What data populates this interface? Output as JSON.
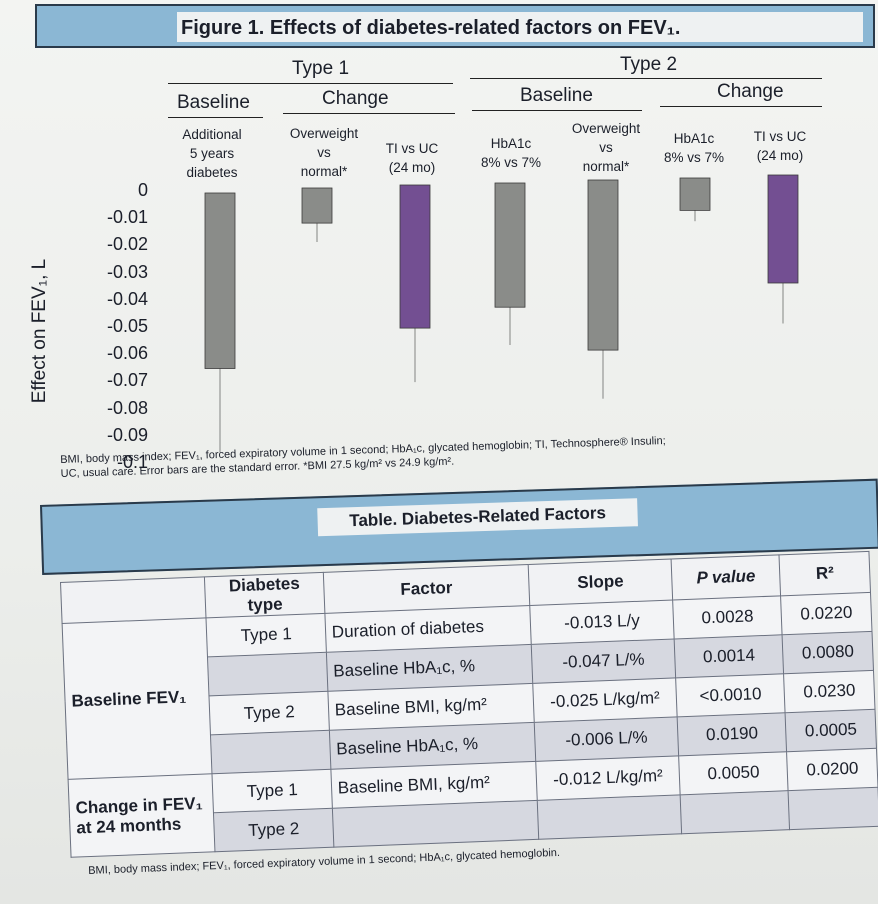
{
  "figure_title": "Figure 1. Effects of diabetes-related factors on FEV₁.",
  "headers": {
    "type1": "Type 1",
    "type2": "Type 2",
    "baseline": "Baseline",
    "change": "Change"
  },
  "chart_data": {
    "type": "bar",
    "ylabel": "Effect on FEV₁, L",
    "ylim": [
      -0.1,
      0
    ],
    "yticks": [
      "0",
      "-0.01",
      "-0.02",
      "-0.03",
      "-0.04",
      "-0.05",
      "-0.06",
      "-0.07",
      "-0.08",
      "-0.09",
      "-0.1"
    ],
    "categories": [
      "Additional\n5 years\ndiabetes",
      "Overweight\nvs\nnormal*",
      "TI vs UC\n(24 mo)",
      "HbA1c\n8% vs 7%",
      "Overweight\nvs\nnormal*",
      "HbA1c\n8% vs 7%",
      "TI vs UC\n(24 mo)"
    ],
    "values": [
      -0.065,
      -0.013,
      -0.053,
      -0.046,
      -0.063,
      -0.012,
      -0.04
    ],
    "errors": [
      0.031,
      0.007,
      0.02,
      0.014,
      0.018,
      0.004,
      0.015
    ],
    "colors": [
      "#8a8c89",
      "#8a8c89",
      "#734f92",
      "#8a8c89",
      "#8a8c89",
      "#8a8c89",
      "#734f92"
    ],
    "groups": [
      "Type 1 Baseline",
      "Type 1 Change",
      "Type 1 Change",
      "Type 2 Baseline",
      "Type 2 Baseline",
      "Type 2 Change",
      "Type 2 Change"
    ]
  },
  "footnote_fig": "BMI, body mass index; FEV₁, forced expiratory volume in 1 second; HbA₁c, glycated hemoglobin; TI, Technosphere® Insulin;\nUC, usual care. Error bars are the standard error. *BMI 27.5 kg/m² vs 24.9 kg/m².",
  "table": {
    "title": "Table. Diabetes-Related Factors",
    "columns": [
      "",
      "Diabetes type",
      "Factor",
      "Slope",
      "P value",
      "R²"
    ],
    "sections": [
      {
        "label": "Baseline FEV₁",
        "rows": [
          {
            "type": "Type 1",
            "factor": "Duration of diabetes",
            "slope": "-0.013 L/y",
            "p": "0.0028",
            "r2": "0.0220"
          },
          {
            "type": "",
            "factor": "Baseline HbA₁c, %",
            "slope": "-0.047 L/%",
            "p": "0.0014",
            "r2": "0.0080"
          },
          {
            "type": "Type 2",
            "factor": "Baseline BMI, kg/m²",
            "slope": "-0.025 L/kg/m²",
            "p": "<0.0010",
            "r2": "0.0230"
          },
          {
            "type": "",
            "factor": "Baseline HbA₁c, %",
            "slope": "-0.006 L/%",
            "p": "0.0190",
            "r2": "0.0005"
          }
        ]
      },
      {
        "label": "Change in FEV₁ at 24 months",
        "rows": [
          {
            "type": "Type 1",
            "factor": "Baseline BMI, kg/m²",
            "slope": "-0.012 L/kg/m²",
            "p": "0.0050",
            "r2": "0.0200"
          },
          {
            "type": "Type 2",
            "factor": "",
            "slope": "",
            "p": "",
            "r2": ""
          }
        ]
      }
    ]
  },
  "footnote_tbl": "BMI, body mass index; FEV₁, forced expiratory volume in 1 second; HbA₁c, glycated hemoglobin."
}
